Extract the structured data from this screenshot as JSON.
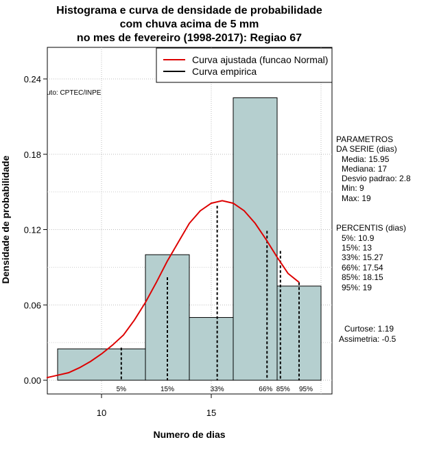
{
  "chart_data": {
    "type": "histogram",
    "title_lines": [
      "Histograma e curva de densidade de probabilidade",
      "com chuva acima de 5 mm",
      "no mes de fevereiro (1998-2017): Regiao 67"
    ],
    "xlabel": "Numero de dias",
    "ylabel": "Densidade de probabilidade",
    "xlim": [
      7.5,
      20.5
    ],
    "ylim": [
      0,
      0.265
    ],
    "x_ticks": [
      10,
      15
    ],
    "y_ticks": [
      0.0,
      0.06,
      0.12,
      0.18,
      0.24
    ],
    "y_tick_labels": [
      "0.00",
      "0.06",
      "0.12",
      "0.18",
      "0.24"
    ],
    "bins": [
      {
        "start": 8,
        "end": 12,
        "density": 0.025
      },
      {
        "start": 12,
        "end": 14,
        "density": 0.1
      },
      {
        "start": 14,
        "end": 16,
        "density": 0.05
      },
      {
        "start": 16,
        "end": 18,
        "density": 0.225
      },
      {
        "start": 18,
        "end": 20,
        "density": 0.075
      }
    ],
    "bar_color": "#b5cfcf",
    "fitted_curve": {
      "name": "Curva ajustada (funcao Normal)",
      "color": "#dd0000",
      "x": [
        7.5,
        8,
        8.5,
        9,
        9.5,
        10,
        10.5,
        11,
        11.5,
        12,
        12.5,
        13,
        13.5,
        14,
        14.5,
        15,
        15.5,
        16,
        16.5,
        17,
        17.5,
        18,
        18.5,
        19
      ],
      "y": [
        0.002,
        0.004,
        0.006,
        0.01,
        0.015,
        0.021,
        0.028,
        0.036,
        0.048,
        0.062,
        0.078,
        0.095,
        0.11,
        0.125,
        0.135,
        0.141,
        0.143,
        0.141,
        0.135,
        0.125,
        0.112,
        0.098,
        0.085,
        0.078
      ]
    },
    "empirical_curve": {
      "name": "Curva empirica",
      "color": "#000000"
    },
    "percentile_lines": [
      {
        "label": "5%",
        "x": 10.9,
        "y": 0.026
      },
      {
        "label": "15%",
        "x": 13.0,
        "y": 0.082
      },
      {
        "label": "33%",
        "x": 15.27,
        "y": 0.139
      },
      {
        "label": "66%",
        "x": 17.54,
        "y": 0.119
      },
      {
        "label": "85%",
        "x": 18.15,
        "y": 0.103
      },
      {
        "label": "95%",
        "x": 19.0,
        "y": 0.078
      }
    ],
    "legend_position": "top-right",
    "grid": true,
    "source_note": "uto: CPTEC/INPE",
    "parameters": {
      "heading": [
        "PARAMETROS",
        "DA SERIE (dias)"
      ],
      "lines": [
        "Media: 15.95",
        "Mediana: 17",
        "Desvio padrao: 2.8",
        "Min: 9",
        "Max: 19"
      ]
    },
    "percentiles": {
      "heading": "PERCENTIS (dias)",
      "lines": [
        "5%: 10.9",
        "15%: 13",
        "33%: 15.27",
        "66%: 17.54",
        "85%: 18.15",
        "95%: 19"
      ]
    },
    "shape": {
      "lines": [
        "Curtose: 1.19",
        "Assimetria: -0.5"
      ]
    }
  }
}
